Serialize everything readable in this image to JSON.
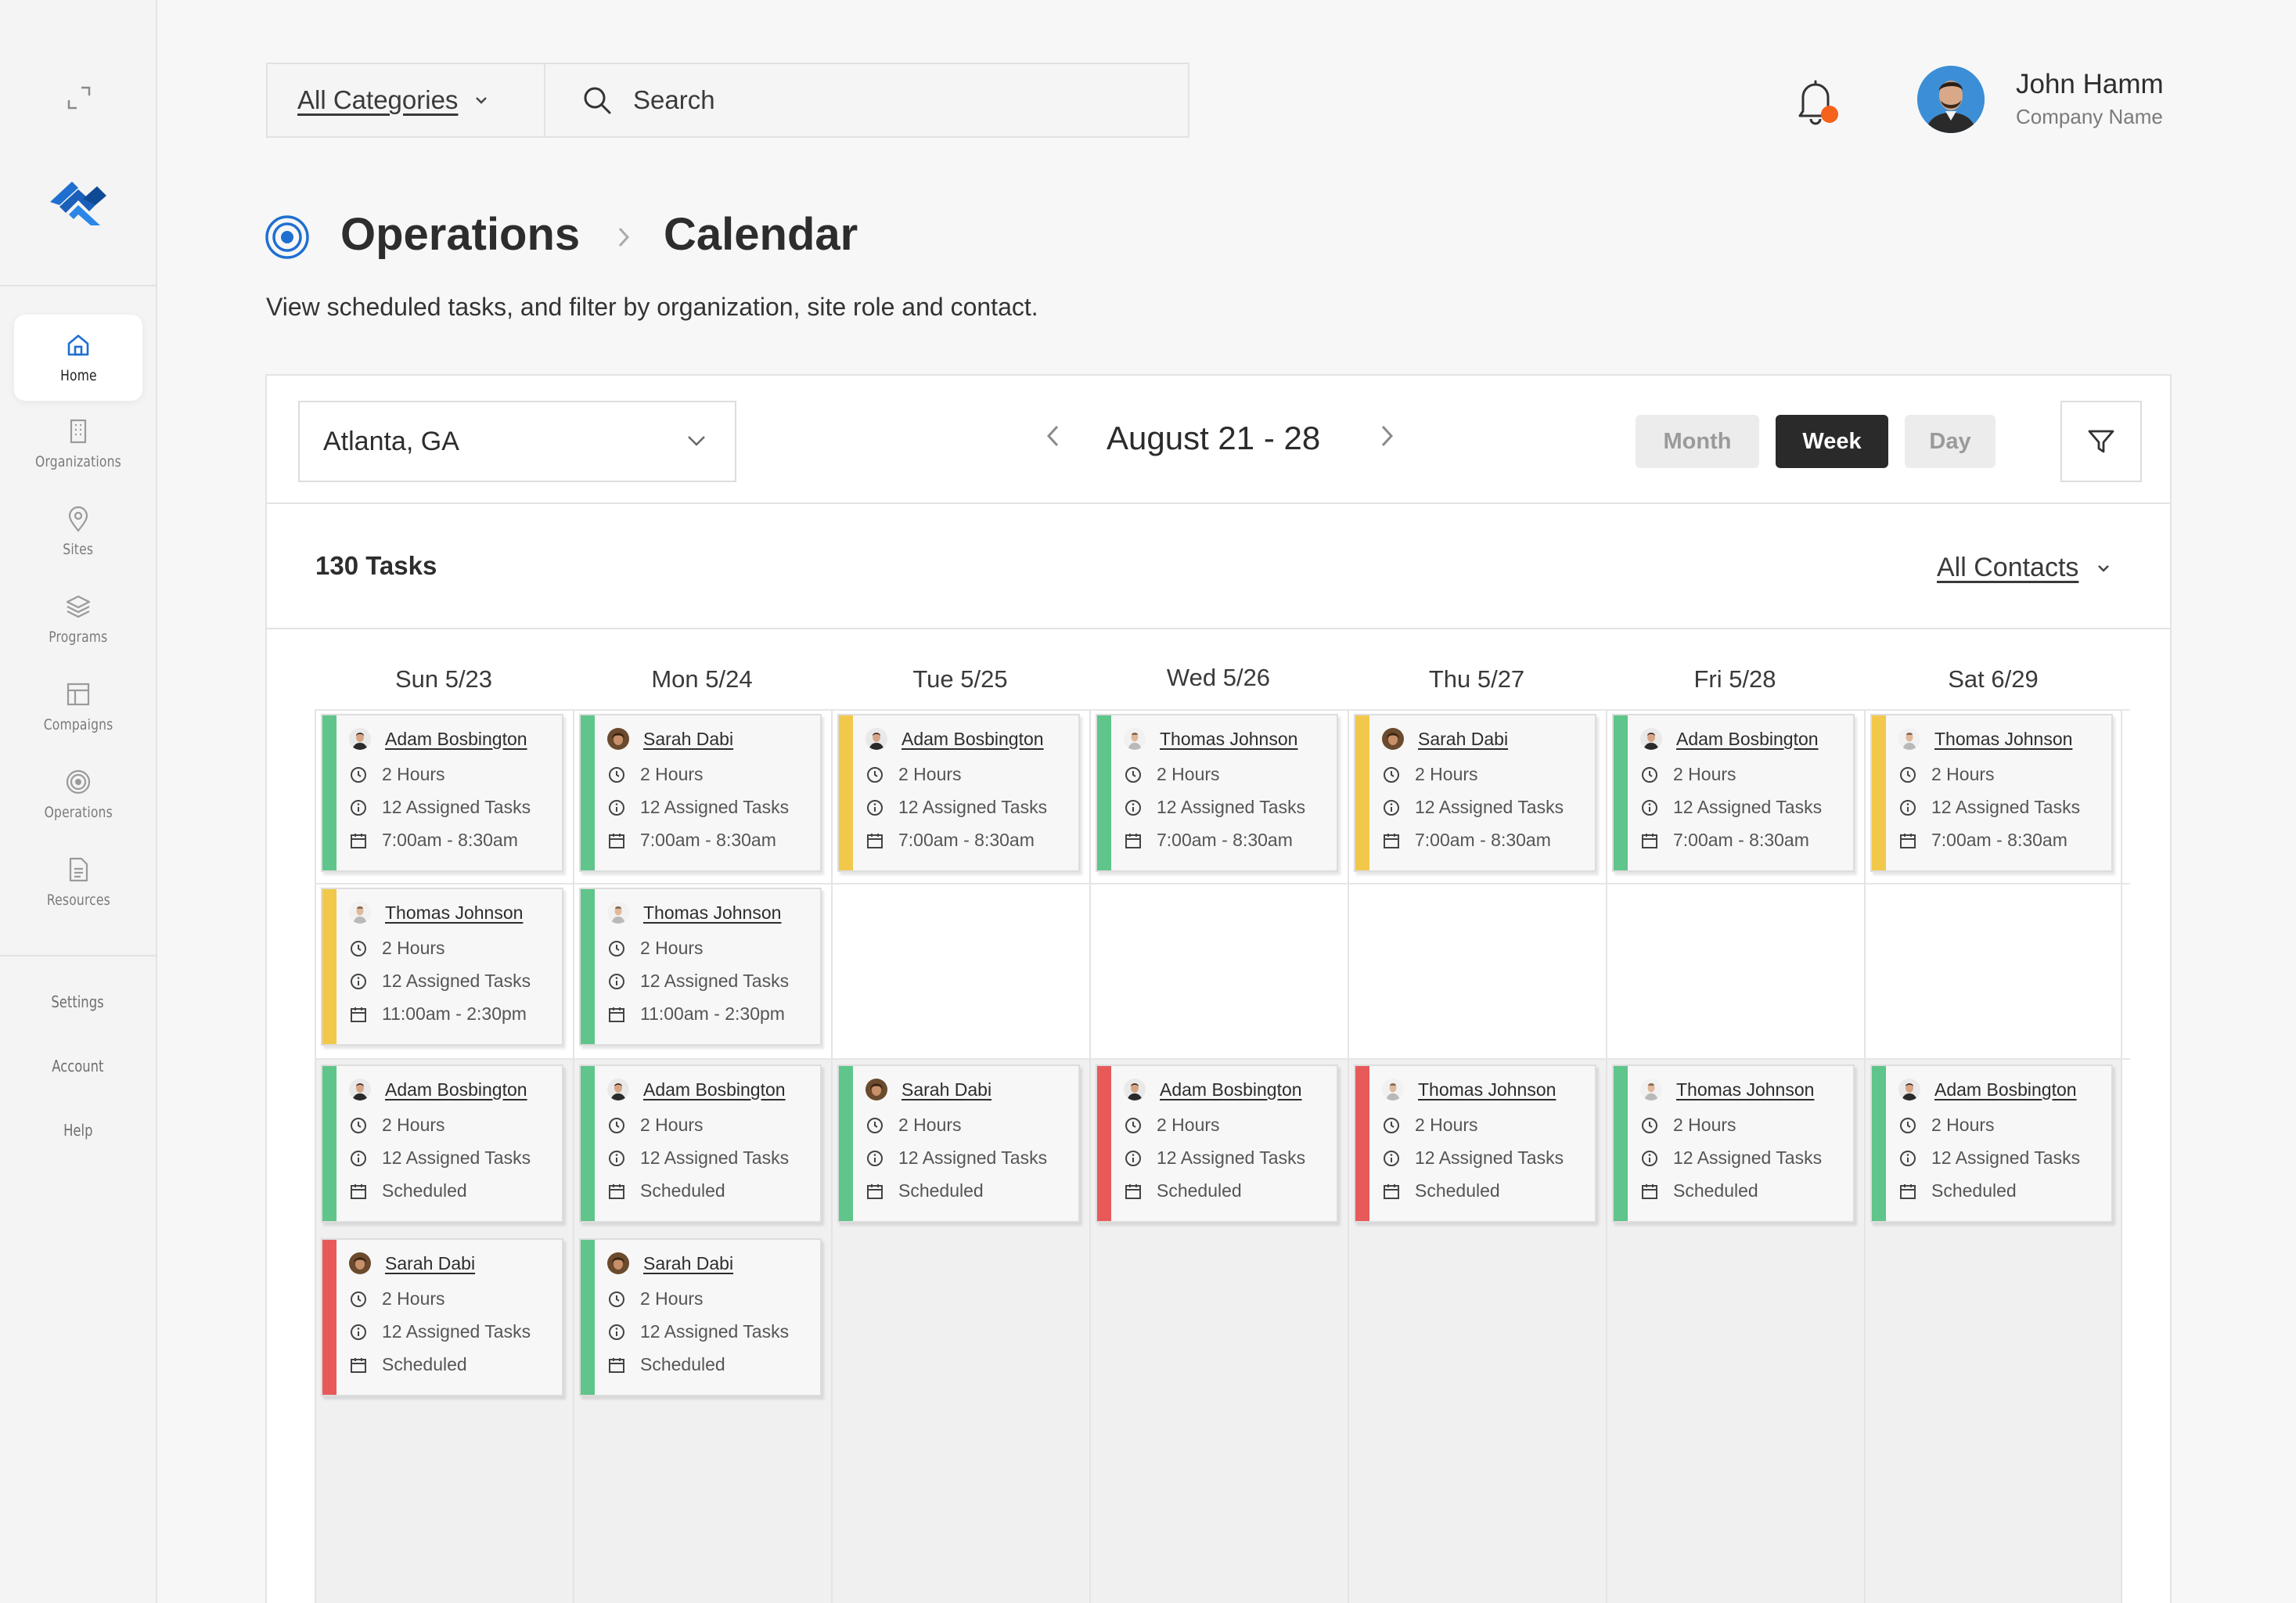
{
  "sidebar": {
    "items": [
      {
        "label": "Home",
        "icon": "home-icon",
        "active": true
      },
      {
        "label": "Organizations",
        "icon": "organizations-icon"
      },
      {
        "label": "Sites",
        "icon": "location-pin-icon"
      },
      {
        "label": "Programs",
        "icon": "layers-icon"
      },
      {
        "label": "Compaigns",
        "icon": "layout-icon"
      },
      {
        "label": "Operations",
        "icon": "target-icon"
      },
      {
        "label": "Resources",
        "icon": "document-icon"
      }
    ],
    "secondary": [
      {
        "label": "Settings"
      },
      {
        "label": "Account"
      },
      {
        "label": "Help"
      }
    ]
  },
  "header": {
    "category": "All Categories",
    "search_placeholder": "Search",
    "user": {
      "name": "John Hamm",
      "company": "Company Name"
    }
  },
  "page": {
    "breadcrumb": [
      "Operations",
      "Calendar"
    ],
    "subtitle": "View scheduled tasks, and filter by organization, site role and contact."
  },
  "toolbar": {
    "location": "Atlanta, GA",
    "date_range": "August 21 - 28",
    "views": [
      "Month",
      "Week",
      "Day"
    ],
    "active_view": "Week"
  },
  "tasks_summary": {
    "count": "130 Tasks",
    "contacts": "All Contacts"
  },
  "calendar": {
    "days": [
      "Sun 5/23",
      "Mon 5/24",
      "Tue 5/25",
      "Wed 5/26",
      "Thu 5/27",
      "Fri 5/28",
      "Sat 6/29"
    ],
    "cards": [
      {
        "day": 0,
        "row": 0,
        "color": "green",
        "person": "Adam Bosbington",
        "duration": "2 Hours",
        "tasks": "12 Assigned Tasks",
        "time": "7:00am - 8:30am"
      },
      {
        "day": 1,
        "row": 0,
        "color": "green",
        "person": "Sarah Dabi",
        "duration": "2 Hours",
        "tasks": "12 Assigned Tasks",
        "time": "7:00am - 8:30am"
      },
      {
        "day": 2,
        "row": 0,
        "color": "yellow",
        "person": "Adam Bosbington",
        "duration": "2 Hours",
        "tasks": "12 Assigned Tasks",
        "time": "7:00am - 8:30am"
      },
      {
        "day": 3,
        "row": 0,
        "color": "green",
        "person": "Thomas Johnson",
        "duration": "2 Hours",
        "tasks": "12 Assigned Tasks",
        "time": "7:00am - 8:30am"
      },
      {
        "day": 4,
        "row": 0,
        "color": "yellow",
        "person": "Sarah Dabi",
        "duration": "2 Hours",
        "tasks": "12 Assigned Tasks",
        "time": "7:00am - 8:30am"
      },
      {
        "day": 5,
        "row": 0,
        "color": "green",
        "person": "Adam Bosbington",
        "duration": "2 Hours",
        "tasks": "12 Assigned Tasks",
        "time": "7:00am - 8:30am"
      },
      {
        "day": 6,
        "row": 0,
        "color": "yellow",
        "person": "Thomas Johnson",
        "duration": "2 Hours",
        "tasks": "12 Assigned Tasks",
        "time": "7:00am - 8:30am"
      },
      {
        "day": 0,
        "row": 1,
        "color": "yellow",
        "person": "Thomas Johnson",
        "duration": "2 Hours",
        "tasks": "12 Assigned Tasks",
        "time": "11:00am - 2:30pm"
      },
      {
        "day": 1,
        "row": 1,
        "color": "green",
        "person": "Thomas Johnson",
        "duration": "2 Hours",
        "tasks": "12 Assigned Tasks",
        "time": "11:00am - 2:30pm"
      },
      {
        "day": 0,
        "row": 2,
        "color": "green",
        "person": "Adam Bosbington",
        "duration": "2 Hours",
        "tasks": "12 Assigned Tasks",
        "time": "Scheduled"
      },
      {
        "day": 1,
        "row": 2,
        "color": "green",
        "person": "Adam Bosbington",
        "duration": "2 Hours",
        "tasks": "12 Assigned Tasks",
        "time": "Scheduled"
      },
      {
        "day": 2,
        "row": 2,
        "color": "green",
        "person": "Sarah Dabi",
        "duration": "2 Hours",
        "tasks": "12 Assigned Tasks",
        "time": "Scheduled"
      },
      {
        "day": 3,
        "row": 2,
        "color": "red",
        "person": "Adam Bosbington",
        "duration": "2 Hours",
        "tasks": "12 Assigned Tasks",
        "time": "Scheduled"
      },
      {
        "day": 4,
        "row": 2,
        "color": "red",
        "person": "Thomas Johnson",
        "duration": "2 Hours",
        "tasks": "12 Assigned Tasks",
        "time": "Scheduled"
      },
      {
        "day": 5,
        "row": 2,
        "color": "green",
        "person": "Thomas Johnson",
        "duration": "2 Hours",
        "tasks": "12 Assigned Tasks",
        "time": "Scheduled"
      },
      {
        "day": 6,
        "row": 2,
        "color": "green",
        "person": "Adam Bosbington",
        "duration": "2 Hours",
        "tasks": "12 Assigned Tasks",
        "time": "Scheduled"
      },
      {
        "day": 0,
        "row": 3,
        "color": "red",
        "person": "Sarah Dabi",
        "duration": "2 Hours",
        "tasks": "12 Assigned Tasks",
        "time": "Scheduled"
      },
      {
        "day": 1,
        "row": 3,
        "color": "green",
        "person": "Sarah Dabi",
        "duration": "2 Hours",
        "tasks": "12 Assigned Tasks",
        "time": "Scheduled"
      }
    ]
  },
  "colors": {
    "accent": "#1f6fd1",
    "green": "#5fc58a",
    "yellow": "#f2c84b",
    "red": "#e85a5a",
    "notification": "#f4621b"
  }
}
